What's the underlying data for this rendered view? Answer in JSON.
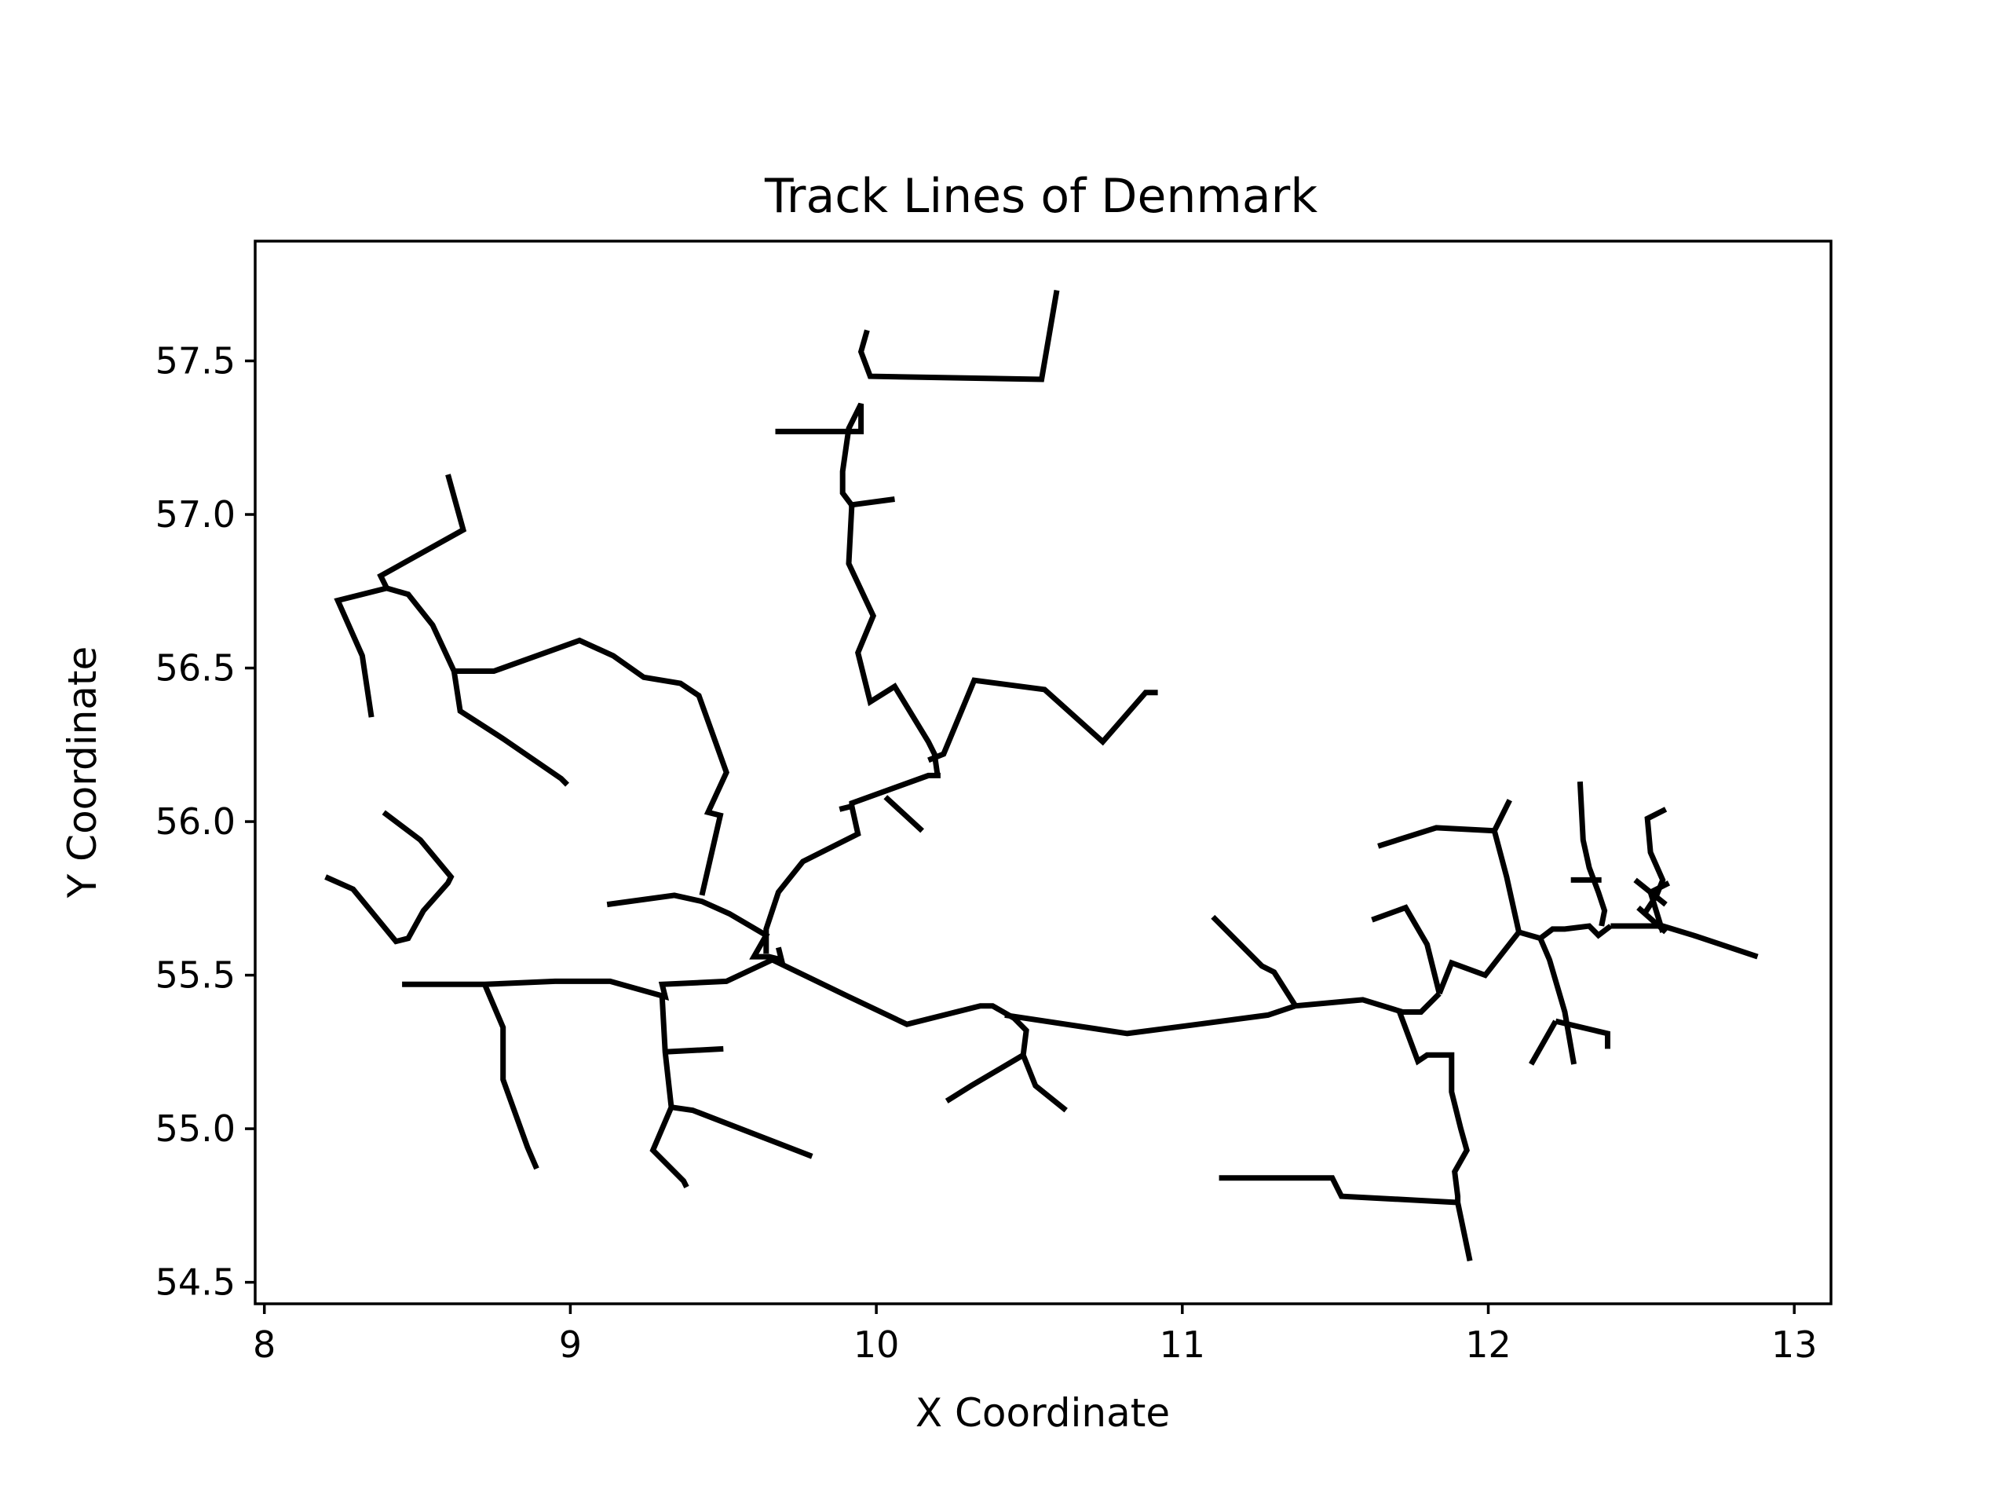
{
  "chart_data": {
    "type": "line",
    "title": "Track Lines of Denmark",
    "xlabel": "X Coordinate",
    "ylabel": "Y Coordinate",
    "xlim": [
      7.97,
      13.12
    ],
    "ylim": [
      54.43,
      57.89
    ],
    "xticks": [
      8,
      9,
      10,
      11,
      12,
      13
    ],
    "xtick_labels": [
      "8",
      "9",
      "10",
      "11",
      "12",
      "13"
    ],
    "yticks": [
      54.5,
      55.0,
      55.5,
      56.0,
      56.5,
      57.0,
      57.5
    ],
    "ytick_labels": [
      "54.5",
      "55.0",
      "55.5",
      "56.0",
      "56.5",
      "57.0",
      "57.5"
    ],
    "grid": false,
    "color": "#000000",
    "series": [
      {
        "x": [
          9.97,
          9.95,
          9.98,
          10.54,
          10.59
        ],
        "y": [
          57.6,
          57.53,
          57.45,
          57.44,
          57.73
        ]
      },
      {
        "x": [
          9.67,
          9.95,
          9.95,
          9.91,
          9.89,
          9.89,
          9.92,
          9.91,
          9.99,
          9.94,
          9.98,
          10.06,
          10.06,
          10.17,
          10.19,
          10.2
        ],
        "y": [
          57.27,
          57.27,
          57.36,
          57.28,
          57.14,
          57.07,
          57.03,
          56.84,
          56.67,
          56.55,
          56.39,
          56.44,
          56.44,
          56.26,
          56.22,
          56.15
        ]
      },
      {
        "x": [
          9.91,
          10.06
        ],
        "y": [
          57.03,
          57.05
        ]
      },
      {
        "x": [
          10.17,
          10.22,
          10.32,
          10.55,
          10.74,
          10.88,
          10.92
        ],
        "y": [
          56.2,
          56.22,
          56.46,
          56.43,
          56.26,
          56.42,
          56.42
        ]
      },
      {
        "x": [
          9.88,
          9.92,
          9.92,
          10.17,
          10.21
        ],
        "y": [
          56.04,
          56.05,
          56.06,
          56.15,
          56.15
        ]
      },
      {
        "x": [
          10.03,
          10.15
        ],
        "y": [
          56.08,
          55.97
        ]
      },
      {
        "x": [
          9.92,
          9.94,
          9.76,
          9.68,
          9.64,
          9.64
        ],
        "y": [
          56.05,
          55.96,
          55.87,
          55.77,
          55.65,
          55.57
        ]
      },
      {
        "x": [
          9.12,
          9.34,
          9.43,
          9.52,
          9.64,
          9.6,
          9.65,
          9.69,
          9.68
        ],
        "y": [
          55.73,
          55.76,
          55.74,
          55.7,
          55.63,
          55.56,
          55.56,
          55.55,
          55.59
        ]
      },
      {
        "x": [
          9.43,
          9.49,
          9.45,
          9.51,
          9.42,
          9.36,
          9.24,
          9.14,
          9.03,
          8.75,
          8.62
        ],
        "y": [
          55.76,
          56.02,
          56.03,
          56.16,
          56.41,
          56.45,
          56.47,
          56.54,
          56.59,
          56.49,
          56.49
        ]
      },
      {
        "x": [
          8.62,
          8.64,
          8.78,
          8.97,
          8.99
        ],
        "y": [
          56.49,
          56.36,
          56.27,
          56.14,
          56.12
        ]
      },
      {
        "x": [
          8.62,
          8.55,
          8.47,
          8.4,
          8.38,
          8.65,
          8.6
        ],
        "y": [
          56.49,
          56.64,
          56.74,
          56.76,
          56.8,
          56.95,
          57.13
        ]
      },
      {
        "x": [
          8.4,
          8.24,
          8.32,
          8.35
        ],
        "y": [
          56.76,
          56.72,
          56.54,
          56.34
        ]
      },
      {
        "x": [
          8.39,
          8.51,
          8.61,
          8.6,
          8.52,
          8.47,
          8.43,
          8.29,
          8.2
        ],
        "y": [
          56.03,
          55.94,
          55.82,
          55.8,
          55.71,
          55.62,
          55.61,
          55.78,
          55.82
        ]
      },
      {
        "x": [
          8.45,
          8.72,
          8.95,
          9.13,
          9.31,
          9.3,
          9.51,
          9.66
        ],
        "y": [
          55.47,
          55.47,
          55.48,
          55.48,
          55.43,
          55.47,
          55.48,
          55.55
        ]
      },
      {
        "x": [
          8.72,
          8.78,
          8.78,
          8.86,
          8.89
        ],
        "y": [
          55.47,
          55.33,
          55.16,
          54.94,
          54.87
        ]
      },
      {
        "x": [
          9.3,
          9.31,
          9.33,
          9.27,
          9.37,
          9.38
        ],
        "y": [
          55.43,
          55.25,
          55.07,
          54.93,
          54.83,
          54.81
        ]
      },
      {
        "x": [
          9.31,
          9.5
        ],
        "y": [
          55.25,
          55.26
        ]
      },
      {
        "x": [
          9.33,
          9.4,
          9.79
        ],
        "y": [
          55.07,
          55.06,
          54.91
        ]
      },
      {
        "x": [
          9.66,
          9.91,
          10.1,
          10.34,
          10.38,
          10.45,
          10.49,
          10.48,
          10.52,
          10.62
        ],
        "y": [
          55.55,
          55.43,
          55.34,
          55.4,
          55.4,
          55.36,
          55.32,
          55.24,
          55.14,
          55.06
        ]
      },
      {
        "x": [
          10.48,
          10.31,
          10.23
        ],
        "y": [
          55.24,
          55.14,
          55.09
        ]
      },
      {
        "x": [
          10.42,
          10.82,
          11.05,
          11.28,
          11.37,
          11.59,
          11.72,
          11.78,
          11.82,
          11.84
        ],
        "y": [
          55.37,
          55.31,
          55.34,
          55.37,
          55.4,
          55.42,
          55.38,
          55.38,
          55.42,
          55.44
        ]
      },
      {
        "x": [
          11.1,
          11.26,
          11.3,
          11.37
        ],
        "y": [
          55.69,
          55.53,
          55.51,
          55.4
        ]
      },
      {
        "x": [
          11.71,
          11.77,
          11.8,
          11.88,
          11.88,
          11.91,
          11.93,
          11.89,
          11.9,
          11.9,
          11.94
        ],
        "y": [
          55.38,
          55.22,
          55.24,
          55.24,
          55.12,
          55.0,
          54.93,
          54.86,
          54.78,
          54.76,
          54.57
        ]
      },
      {
        "x": [
          11.12,
          11.49,
          11.52,
          11.9
        ],
        "y": [
          54.84,
          54.84,
          54.78,
          54.76
        ]
      },
      {
        "x": [
          11.84,
          11.88,
          11.99,
          12.1,
          12.06,
          12.02,
          12.07
        ],
        "y": [
          55.44,
          55.54,
          55.5,
          55.64,
          55.82,
          55.97,
          56.07
        ]
      },
      {
        "x": [
          11.64,
          11.83,
          12.02
        ],
        "y": [
          55.92,
          55.98,
          55.97
        ]
      },
      {
        "x": [
          11.62,
          11.73,
          11.8,
          11.84
        ],
        "y": [
          55.68,
          55.72,
          55.6,
          55.44
        ]
      },
      {
        "x": [
          12.1,
          12.17,
          12.2,
          12.25,
          12.28
        ],
        "y": [
          55.64,
          55.62,
          55.55,
          55.38,
          55.21
        ]
      },
      {
        "x": [
          12.17,
          12.21,
          12.25,
          12.33,
          12.36,
          12.4
        ],
        "y": [
          55.62,
          55.65,
          55.65,
          55.66,
          55.63,
          55.66
        ]
      },
      {
        "x": [
          12.22,
          12.39,
          12.39
        ],
        "y": [
          55.35,
          55.31,
          55.26
        ]
      },
      {
        "x": [
          12.22,
          12.14
        ],
        "y": [
          55.35,
          55.21
        ]
      },
      {
        "x": [
          12.4,
          12.57,
          12.67,
          12.88
        ],
        "y": [
          55.66,
          55.66,
          55.63,
          55.56
        ]
      },
      {
        "x": [
          12.37,
          12.38,
          12.36,
          12.33,
          12.31,
          12.3
        ],
        "y": [
          55.66,
          55.71,
          55.77,
          55.85,
          55.94,
          56.13
        ]
      },
      {
        "x": [
          12.27,
          12.37
        ],
        "y": [
          55.81,
          55.81
        ]
      },
      {
        "x": [
          12.51,
          12.55,
          12.57,
          12.53,
          12.52,
          12.58
        ],
        "y": [
          55.7,
          55.76,
          55.81,
          55.9,
          56.01,
          56.04
        ]
      },
      {
        "x": [
          12.49,
          12.58
        ],
        "y": [
          55.72,
          55.64
        ]
      },
      {
        "x": [
          12.48,
          12.58
        ],
        "y": [
          55.81,
          55.73
        ]
      },
      {
        "x": [
          12.57,
          12.53,
          12.59
        ],
        "y": [
          55.64,
          55.77,
          55.8
        ]
      }
    ]
  }
}
